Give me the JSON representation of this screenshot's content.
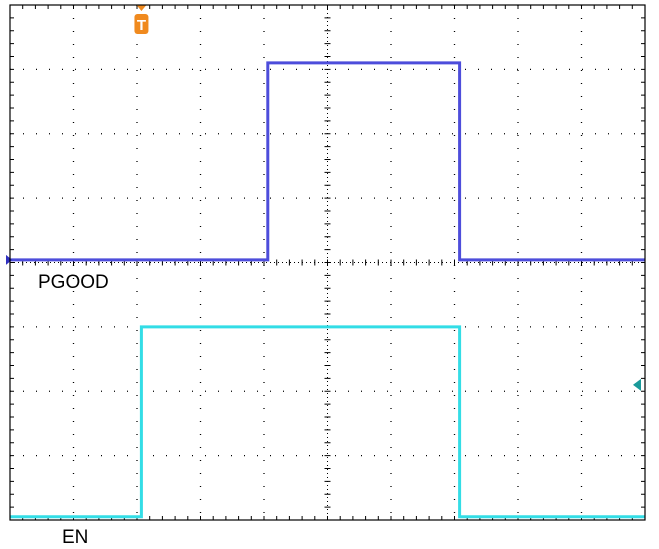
{
  "chart_data": {
    "type": "line",
    "title": "",
    "xlabel": "",
    "ylabel": "",
    "grid": true,
    "grid_divisions": {
      "x": 10,
      "y": 8
    },
    "xlim": [
      0,
      10
    ],
    "ylim": [
      -4,
      4
    ],
    "series": [
      {
        "name": "PGOOD",
        "color": "#4d4ddb",
        "x": [
          0,
          4.06,
          4.06,
          7.08,
          7.08,
          10
        ],
        "y": [
          0.04,
          0.04,
          3.1,
          3.1,
          0.04,
          0.04
        ]
      },
      {
        "name": "EN",
        "color": "#33dde6",
        "x": [
          0,
          2.07,
          2.07,
          7.08,
          7.08,
          10
        ],
        "y": [
          -3.95,
          -3.95,
          -1.0,
          -1.0,
          -3.95,
          -3.95
        ]
      }
    ]
  },
  "markers": {
    "trigger": {
      "label": "T",
      "color": "#f08a1e",
      "x_div": 2.07
    },
    "ch1_ground": {
      "color": "#3030c0",
      "y_div": 0.04
    },
    "ch2_level": {
      "color": "#1a9a9a",
      "y_div": -1.9
    }
  }
}
